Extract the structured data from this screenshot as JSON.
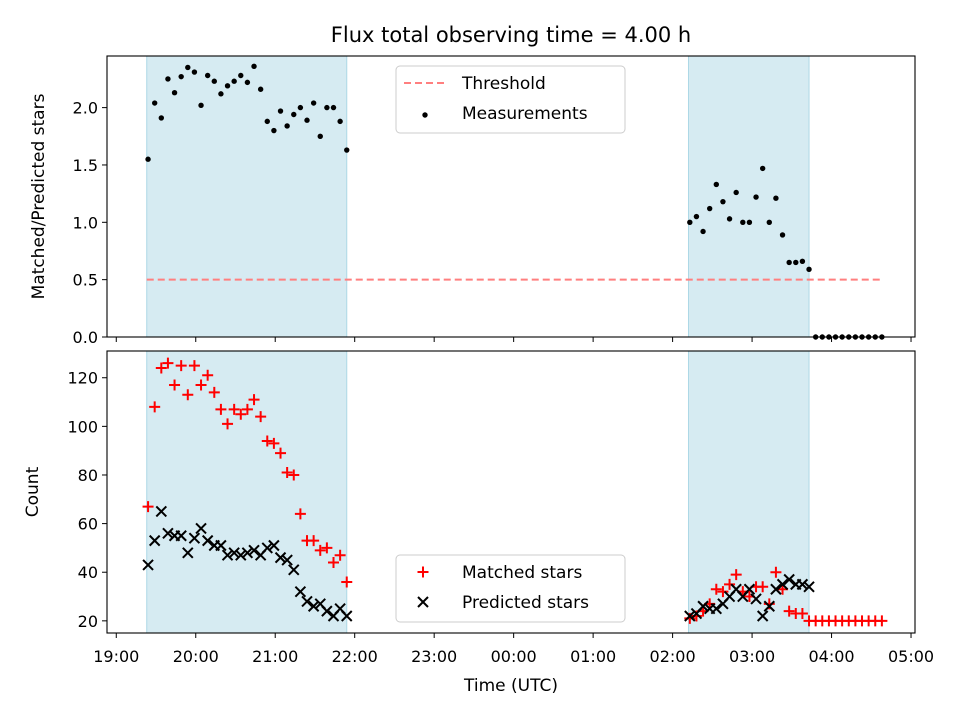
{
  "title": "Flux total observing time = 4.00 h",
  "xlabel": "Time (UTC)",
  "x_tick_labels": [
    "19:00",
    "20:00",
    "21:00",
    "22:00",
    "23:00",
    "00:00",
    "01:00",
    "02:00",
    "03:00",
    "04:00",
    "05:00"
  ],
  "colors": {
    "threshold": "#ff7f7f",
    "matched": "#ff0000",
    "predicted": "#000000",
    "shade": "#add8e6"
  },
  "chart_data": [
    {
      "type": "scatter",
      "ylabel": "Matched/Predicted stars",
      "xlim": [
        "18:53",
        "05:03"
      ],
      "ylim": [
        0,
        2.45
      ],
      "y_ticks": [
        0.0,
        0.5,
        1.0,
        1.5,
        2.0
      ],
      "y_tick_labels": [
        "0.0",
        "0.5",
        "1.0",
        "1.5",
        "2.0"
      ],
      "legend_position": "top-center",
      "shaded_intervals": [
        [
          "19:23",
          "21:54"
        ],
        [
          "02:12",
          "03:43"
        ]
      ],
      "threshold": {
        "name": "Threshold",
        "value": 0.5,
        "x_range": [
          "19:23",
          "04:38"
        ],
        "style": "dashed"
      },
      "series": [
        {
          "name": "Measurements",
          "x": [
            "19:24",
            "19:29",
            "19:34",
            "19:39",
            "19:44",
            "19:49",
            "19:54",
            "19:59",
            "20:04",
            "20:09",
            "20:14",
            "20:19",
            "20:24",
            "20:29",
            "20:34",
            "20:39",
            "20:44",
            "20:49",
            "20:54",
            "20:59",
            "21:04",
            "21:09",
            "21:14",
            "21:19",
            "21:24",
            "21:29",
            "21:34",
            "21:39",
            "21:44",
            "21:49",
            "21:54",
            "02:13",
            "02:18",
            "02:23",
            "02:28",
            "02:33",
            "02:38",
            "02:43",
            "02:48",
            "02:53",
            "02:58",
            "03:03",
            "03:08",
            "03:13",
            "03:18",
            "03:23",
            "03:28",
            "03:33",
            "03:38",
            "03:43",
            "03:48",
            "03:53",
            "03:58",
            "04:03",
            "04:08",
            "04:13",
            "04:18",
            "04:23",
            "04:28",
            "04:33",
            "04:38"
          ],
          "y": [
            1.55,
            2.04,
            1.91,
            2.25,
            2.13,
            2.27,
            2.35,
            2.31,
            2.02,
            2.28,
            2.23,
            2.12,
            2.19,
            2.23,
            2.28,
            2.22,
            2.36,
            2.16,
            1.88,
            1.8,
            1.97,
            1.84,
            1.94,
            2.0,
            1.89,
            2.04,
            1.75,
            2.0,
            2.0,
            1.88,
            1.63,
            1.0,
            1.05,
            0.92,
            1.12,
            1.33,
            1.18,
            1.03,
            1.26,
            1.0,
            1.0,
            1.22,
            1.47,
            1.0,
            1.21,
            0.89,
            0.65,
            0.65,
            0.66,
            0.59,
            0.0,
            0.0,
            0.0,
            0.0,
            0.0,
            0.0,
            0.0,
            0.0,
            0.0,
            0.0,
            0.0
          ]
        }
      ]
    },
    {
      "type": "scatter",
      "ylabel": "Count",
      "xlim": [
        "18:53",
        "05:03"
      ],
      "ylim": [
        15,
        131
      ],
      "y_ticks": [
        20,
        40,
        60,
        80,
        100,
        120
      ],
      "y_tick_labels": [
        "20",
        "40",
        "60",
        "80",
        "100",
        "120"
      ],
      "legend_position": "bottom-center",
      "shaded_intervals": [
        [
          "19:23",
          "21:54"
        ],
        [
          "02:12",
          "03:43"
        ]
      ],
      "series": [
        {
          "name": "Matched stars",
          "marker": "+",
          "x": [
            "19:24",
            "19:29",
            "19:34",
            "19:39",
            "19:44",
            "19:49",
            "19:54",
            "19:59",
            "20:04",
            "20:09",
            "20:14",
            "20:19",
            "20:24",
            "20:29",
            "20:34",
            "20:39",
            "20:44",
            "20:49",
            "20:54",
            "20:59",
            "21:04",
            "21:09",
            "21:14",
            "21:19",
            "21:24",
            "21:29",
            "21:34",
            "21:39",
            "21:44",
            "21:49",
            "21:54",
            "02:13",
            "02:18",
            "02:23",
            "02:28",
            "02:33",
            "02:38",
            "02:43",
            "02:48",
            "02:53",
            "02:58",
            "03:03",
            "03:08",
            "03:13",
            "03:18",
            "03:23",
            "03:28",
            "03:33",
            "03:38",
            "03:43",
            "03:48",
            "03:53",
            "03:58",
            "04:03",
            "04:08",
            "04:13",
            "04:18",
            "04:23",
            "04:28",
            "04:33",
            "04:38"
          ],
          "y": [
            67,
            108,
            124,
            126,
            117,
            125,
            113,
            125,
            117,
            121,
            114,
            107,
            101,
            107,
            105,
            107,
            111,
            104,
            94,
            93,
            89,
            81,
            80,
            64,
            53,
            53,
            49,
            50,
            44,
            47,
            36,
            21,
            22,
            24,
            27,
            33,
            32,
            35,
            39,
            32,
            30,
            34,
            34,
            27,
            40,
            33,
            24,
            23,
            23,
            20,
            20,
            20,
            20,
            20,
            20,
            20,
            20,
            20,
            20,
            20,
            20
          ]
        },
        {
          "name": "Predicted stars",
          "marker": "x",
          "x": [
            "19:24",
            "19:29",
            "19:34",
            "19:39",
            "19:44",
            "19:49",
            "19:54",
            "19:59",
            "20:04",
            "20:09",
            "20:14",
            "20:19",
            "20:24",
            "20:29",
            "20:34",
            "20:39",
            "20:44",
            "20:49",
            "20:54",
            "20:59",
            "21:04",
            "21:09",
            "21:14",
            "21:19",
            "21:24",
            "21:29",
            "21:34",
            "21:39",
            "21:44",
            "21:49",
            "21:54",
            "02:13",
            "02:18",
            "02:23",
            "02:28",
            "02:33",
            "02:38",
            "02:43",
            "02:48",
            "02:53",
            "02:58",
            "03:03",
            "03:08",
            "03:13",
            "03:18",
            "03:23",
            "03:28",
            "03:33",
            "03:38",
            "03:43"
          ],
          "y": [
            43,
            53,
            65,
            56,
            55,
            55,
            48,
            54,
            58,
            53,
            51,
            51,
            47,
            48,
            47,
            48,
            49,
            47,
            50,
            51,
            46,
            45,
            41,
            32,
            28,
            26,
            27,
            24,
            22,
            25,
            22,
            22,
            23,
            26,
            25,
            25,
            27,
            30,
            33,
            30,
            33,
            29,
            22,
            26,
            33,
            35,
            37,
            35,
            35,
            34
          ]
        }
      ]
    }
  ]
}
